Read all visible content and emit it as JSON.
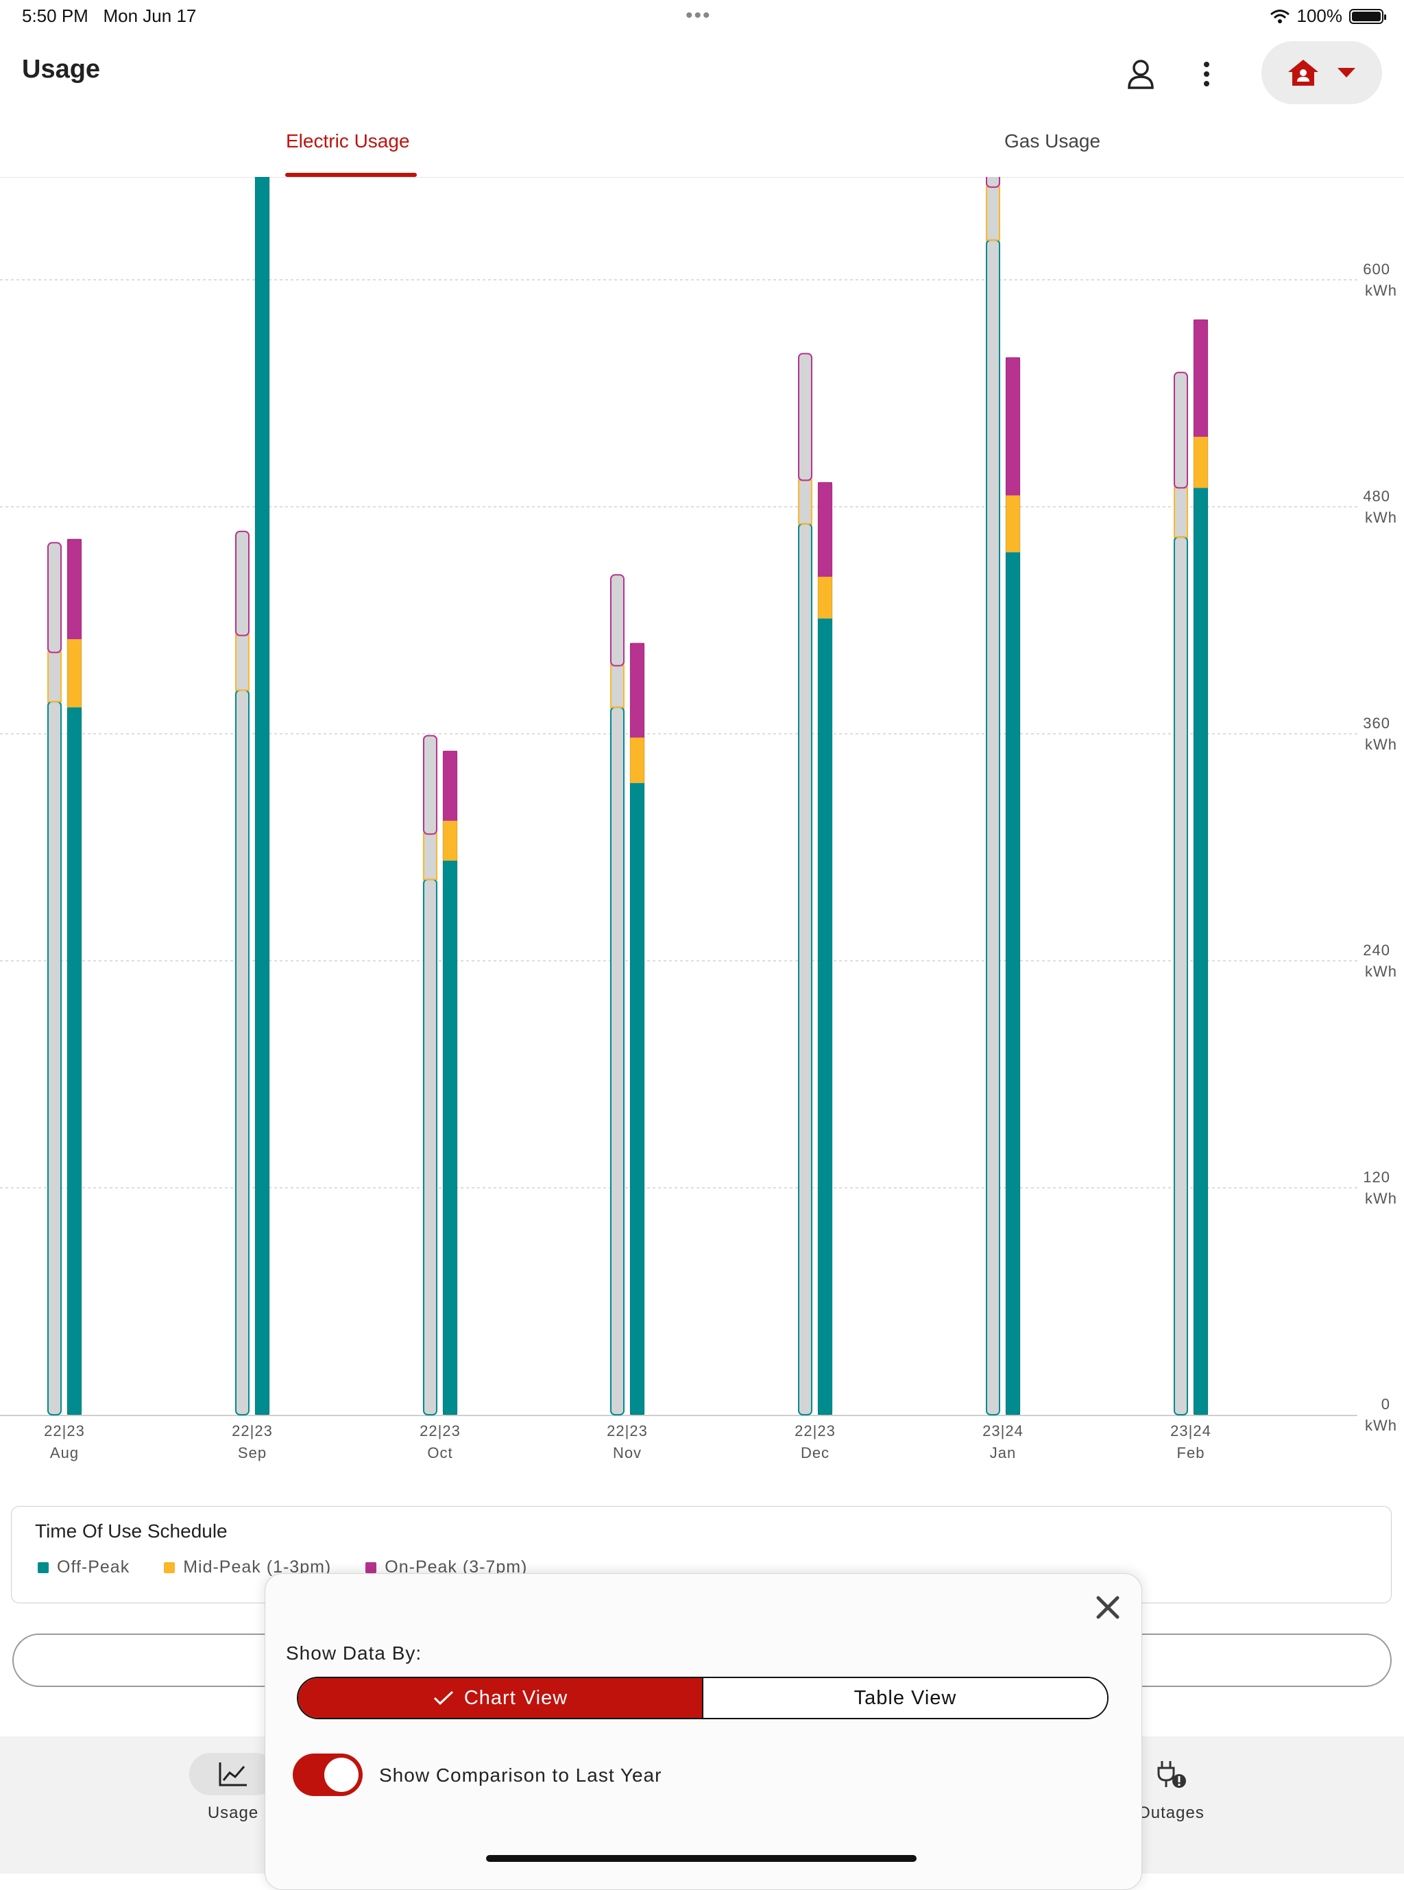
{
  "status_bar": {
    "time": "5:50 PM",
    "date": "Mon Jun 17",
    "battery": "100%"
  },
  "header": {
    "title": "Usage"
  },
  "tabs": [
    {
      "label": "Electric Usage",
      "active": true
    },
    {
      "label": "Gas Usage",
      "active": false
    }
  ],
  "colors": {
    "accent": "#c0120c",
    "off_peak": "#008b8f",
    "mid_peak": "#fbb728",
    "on_peak": "#b8328f",
    "prior_year_fill": "#d3d4d6"
  },
  "chart_data": {
    "type": "bar",
    "stacked": true,
    "categories": [
      "Aug",
      "Sep",
      "Oct",
      "Nov",
      "Dec",
      "Jan",
      "Feb"
    ],
    "year_labels": [
      "22|23",
      "22|23",
      "22|23",
      "22|23",
      "22|23",
      "23|24",
      "23|24"
    ],
    "series": [
      {
        "name": "Off-Peak",
        "prior": [
          377,
          383,
          283,
          374,
          471,
          621,
          464
        ],
        "current": [
          374,
          1100,
          293,
          334,
          421,
          456,
          490
        ]
      },
      {
        "name": "Mid-Peak (1-3pm)",
        "prior": [
          26,
          29,
          24,
          22,
          23,
          28,
          26
        ],
        "current": [
          36,
          0,
          21,
          24,
          22,
          30,
          27
        ]
      },
      {
        "name": "On-Peak (3-7pm)",
        "prior": [
          58,
          55,
          52,
          48,
          67,
          40,
          61
        ],
        "current": [
          53,
          0,
          37,
          50,
          50,
          73,
          62
        ]
      }
    ],
    "y_ticks": [
      {
        "value": "600",
        "unit": "kWh"
      },
      {
        "value": "480",
        "unit": "kWh"
      },
      {
        "value": "360",
        "unit": "kWh"
      },
      {
        "value": "240",
        "unit": "kWh"
      },
      {
        "value": "120",
        "unit": "kWh"
      },
      {
        "value": "0",
        "unit": "kWh"
      }
    ],
    "y_tick_values": [
      600,
      480,
      360,
      240,
      120,
      0
    ],
    "ylim": [
      0,
      655
    ],
    "grid": true
  },
  "legend": {
    "title": "Time Of Use Schedule",
    "items": [
      {
        "label": "Off-Peak",
        "color": "#008b8f"
      },
      {
        "label": "Mid-Peak (1-3pm)",
        "color": "#fbb728"
      },
      {
        "label": "On-Peak (3-7pm)",
        "color": "#b8328f"
      }
    ]
  },
  "bottom_nav": {
    "items": [
      {
        "label": "Usage",
        "icon": "chart-line-icon",
        "active": true
      },
      {
        "label": "Outages",
        "icon": "plug-alert-icon",
        "active": false
      }
    ]
  },
  "sheet": {
    "show_data_by_label": "Show Data By:",
    "chart_view_label": "Chart View",
    "table_view_label": "Table View",
    "comparison_label": "Show Comparison to Last Year",
    "comparison_enabled": true
  }
}
